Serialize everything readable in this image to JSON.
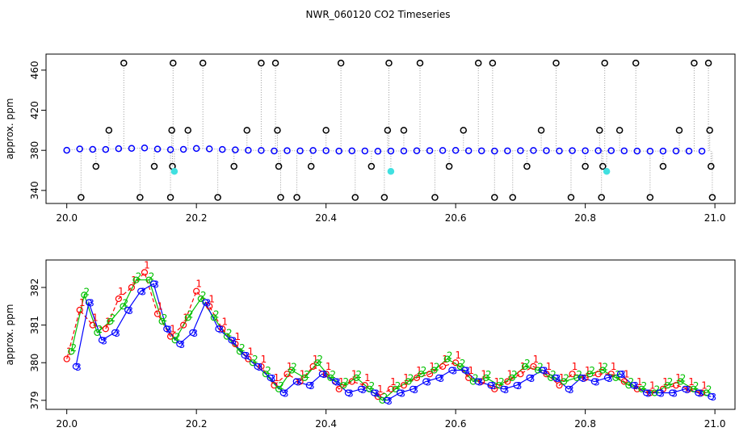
{
  "title": "NWR_060120  CO2 Timeseries",
  "chart_data": [
    {
      "type": "scatter",
      "ylabel": "approx. ppm",
      "xlim": [
        19.968,
        21.031
      ],
      "ylim": [
        327,
        476
      ],
      "xticks": [
        {
          "value": 20,
          "label": "20.0"
        },
        20.2,
        20.4,
        20.6,
        20.8,
        {
          "value": 21,
          "label": "21.0"
        }
      ],
      "yticks": [
        340,
        380,
        420,
        460
      ],
      "series": [
        {
          "color": "#0000ff",
          "line": "dotted",
          "x": [
            20,
            20.02,
            20.04,
            20.06,
            20.08,
            20.1,
            20.12,
            20.14,
            20.16,
            20.18,
            20.2,
            20.22,
            20.24,
            20.26,
            20.28,
            20.3,
            20.32,
            20.34,
            20.36,
            20.38,
            20.4,
            20.42,
            20.44,
            20.46,
            20.48,
            20.5,
            20.52,
            20.54,
            20.56,
            20.58,
            20.6,
            20.62,
            20.64,
            20.66,
            20.68,
            20.7,
            20.72,
            20.74,
            20.76,
            20.78,
            20.8,
            20.82,
            20.84,
            20.86,
            20.88,
            20.9,
            20.92,
            20.94,
            20.96,
            20.98
          ],
          "values": [
            380.1,
            381.4,
            381.0,
            380.9,
            381.7,
            382.0,
            382.4,
            381.3,
            380.7,
            381.0,
            381.9,
            381.5,
            380.9,
            380.5,
            380.1,
            379.9,
            379.4,
            379.7,
            379.5,
            379.9,
            379.7,
            379.3,
            379.5,
            379.4,
            379.1,
            379.3,
            379.4,
            379.6,
            379.7,
            379.9,
            380.0,
            379.6,
            379.5,
            379.3,
            379.5,
            379.7,
            379.9,
            379.7,
            379.4,
            379.7,
            379.6,
            379.7,
            379.7,
            379.5,
            379.3,
            379.2,
            379.3,
            379.4,
            379.3,
            379.2
          ]
        },
        {
          "color": "#000000",
          "drop_lines": true,
          "x": [
            20.022,
            20.045,
            20.065,
            20.088,
            20.113,
            20.135,
            20.16,
            20.162,
            20.163,
            20.164,
            20.187,
            20.21,
            20.233,
            20.258,
            20.278,
            20.3,
            20.322,
            20.325,
            20.327,
            20.33,
            20.355,
            20.377,
            20.4,
            20.423,
            20.445,
            20.47,
            20.49,
            20.495,
            20.497,
            20.52,
            20.545,
            20.568,
            20.59,
            20.612,
            20.635,
            20.657,
            20.66,
            20.688,
            20.71,
            20.732,
            20.755,
            20.778,
            20.8,
            20.822,
            20.825,
            20.827,
            20.83,
            20.853,
            20.878,
            20.9,
            20.92,
            20.945,
            20.968,
            20.99,
            20.992,
            20.994,
            20.996
          ],
          "values": [
            333,
            364,
            400,
            467,
            333,
            364,
            333,
            400,
            364,
            467,
            400,
            467,
            333,
            364,
            400,
            467,
            467,
            400,
            364,
            333,
            333,
            364,
            400,
            467,
            333,
            364,
            333,
            400,
            467,
            400,
            467,
            333,
            364,
            400,
            467,
            467,
            333,
            333,
            364,
            400,
            467,
            333,
            364,
            400,
            333,
            364,
            467,
            400,
            467,
            333,
            364,
            400,
            467,
            467,
            400,
            364,
            333
          ]
        },
        {
          "color": "#40e0e0",
          "drop_lines": true,
          "x": [
            20.166,
            20.5,
            20.833
          ],
          "values": [
            359,
            359,
            359
          ]
        }
      ]
    },
    {
      "type": "line",
      "ylabel": "approx. ppm",
      "xlim": [
        19.968,
        21.031
      ],
      "ylim": [
        378.76,
        382.73
      ],
      "xticks": [
        {
          "value": 20,
          "label": "20.0"
        },
        20.2,
        20.4,
        20.6,
        20.8,
        {
          "value": 21,
          "label": "21.0"
        }
      ],
      "yticks": [
        379,
        380,
        381,
        382
      ],
      "series": [
        {
          "name": "1",
          "color": "#ff0000",
          "x": [
            20,
            20.02,
            20.04,
            20.06,
            20.08,
            20.1,
            20.12,
            20.14,
            20.16,
            20.18,
            20.2,
            20.22,
            20.24,
            20.26,
            20.28,
            20.3,
            20.32,
            20.34,
            20.36,
            20.38,
            20.4,
            20.42,
            20.44,
            20.46,
            20.48,
            20.5,
            20.52,
            20.54,
            20.56,
            20.58,
            20.6,
            20.62,
            20.64,
            20.66,
            20.68,
            20.7,
            20.72,
            20.74,
            20.76,
            20.78,
            20.8,
            20.82,
            20.84,
            20.86,
            20.88,
            20.9,
            20.92,
            20.94,
            20.96,
            20.98
          ],
          "values": [
            380.1,
            381.4,
            381.0,
            380.9,
            381.7,
            382.0,
            382.4,
            381.3,
            380.7,
            381.0,
            381.9,
            381.5,
            380.9,
            380.5,
            380.1,
            379.9,
            379.4,
            379.7,
            379.5,
            379.9,
            379.7,
            379.3,
            379.5,
            379.4,
            379.1,
            379.3,
            379.4,
            379.6,
            379.7,
            379.9,
            380.0,
            379.6,
            379.5,
            379.3,
            379.5,
            379.7,
            379.9,
            379.7,
            379.4,
            379.7,
            379.6,
            379.7,
            379.7,
            379.5,
            379.3,
            379.2,
            379.3,
            379.4,
            379.3,
            379.2
          ]
        },
        {
          "name": "2",
          "color": "#00c000",
          "x": [
            20.007,
            20.027,
            20.047,
            20.067,
            20.087,
            20.107,
            20.127,
            20.147,
            20.167,
            20.187,
            20.207,
            20.227,
            20.247,
            20.267,
            20.287,
            20.307,
            20.327,
            20.347,
            20.367,
            20.387,
            20.407,
            20.427,
            20.447,
            20.467,
            20.487,
            20.507,
            20.527,
            20.547,
            20.567,
            20.587,
            20.607,
            20.627,
            20.647,
            20.667,
            20.687,
            20.707,
            20.727,
            20.747,
            20.767,
            20.787,
            20.807,
            20.827,
            20.847,
            20.867,
            20.887,
            20.907,
            20.927,
            20.947,
            20.967,
            20.987
          ],
          "values": [
            380.3,
            381.8,
            380.8,
            381.1,
            381.5,
            382.2,
            382.2,
            381.1,
            380.6,
            381.2,
            381.7,
            381.2,
            380.7,
            380.3,
            380.0,
            379.7,
            379.3,
            379.8,
            379.6,
            380.0,
            379.6,
            379.4,
            379.6,
            379.3,
            379.0,
            379.3,
            379.5,
            379.7,
            379.8,
            380.1,
            379.9,
            379.5,
            379.6,
            379.4,
            379.6,
            379.9,
            379.8,
            379.6,
            379.5,
            379.6,
            379.7,
            379.8,
            379.6,
            379.4,
            379.3,
            379.2,
            379.4,
            379.5,
            379.3,
            379.2
          ]
        },
        {
          "name": "3",
          "color": "#0000ff",
          "x": [
            20.014,
            20.034,
            20.054,
            20.074,
            20.094,
            20.114,
            20.134,
            20.154,
            20.174,
            20.194,
            20.214,
            20.234,
            20.254,
            20.274,
            20.294,
            20.314,
            20.334,
            20.354,
            20.374,
            20.394,
            20.414,
            20.434,
            20.454,
            20.474,
            20.494,
            20.514,
            20.534,
            20.554,
            20.574,
            20.594,
            20.614,
            20.634,
            20.654,
            20.674,
            20.694,
            20.714,
            20.734,
            20.754,
            20.774,
            20.794,
            20.814,
            20.834,
            20.854,
            20.874,
            20.894,
            20.914,
            20.934,
            20.954,
            20.974,
            20.994
          ],
          "values": [
            379.9,
            381.6,
            380.6,
            380.8,
            381.4,
            381.9,
            382.1,
            380.9,
            380.5,
            380.8,
            381.6,
            380.9,
            380.6,
            380.2,
            379.9,
            379.6,
            379.2,
            379.5,
            379.4,
            379.7,
            379.5,
            379.2,
            379.3,
            379.2,
            379.0,
            379.2,
            379.3,
            379.5,
            379.6,
            379.8,
            379.8,
            379.5,
            379.4,
            379.3,
            379.4,
            379.6,
            379.8,
            379.6,
            379.3,
            379.6,
            379.5,
            379.6,
            379.7,
            379.4,
            379.2,
            379.2,
            379.2,
            379.3,
            379.2,
            379.1
          ]
        }
      ]
    }
  ]
}
